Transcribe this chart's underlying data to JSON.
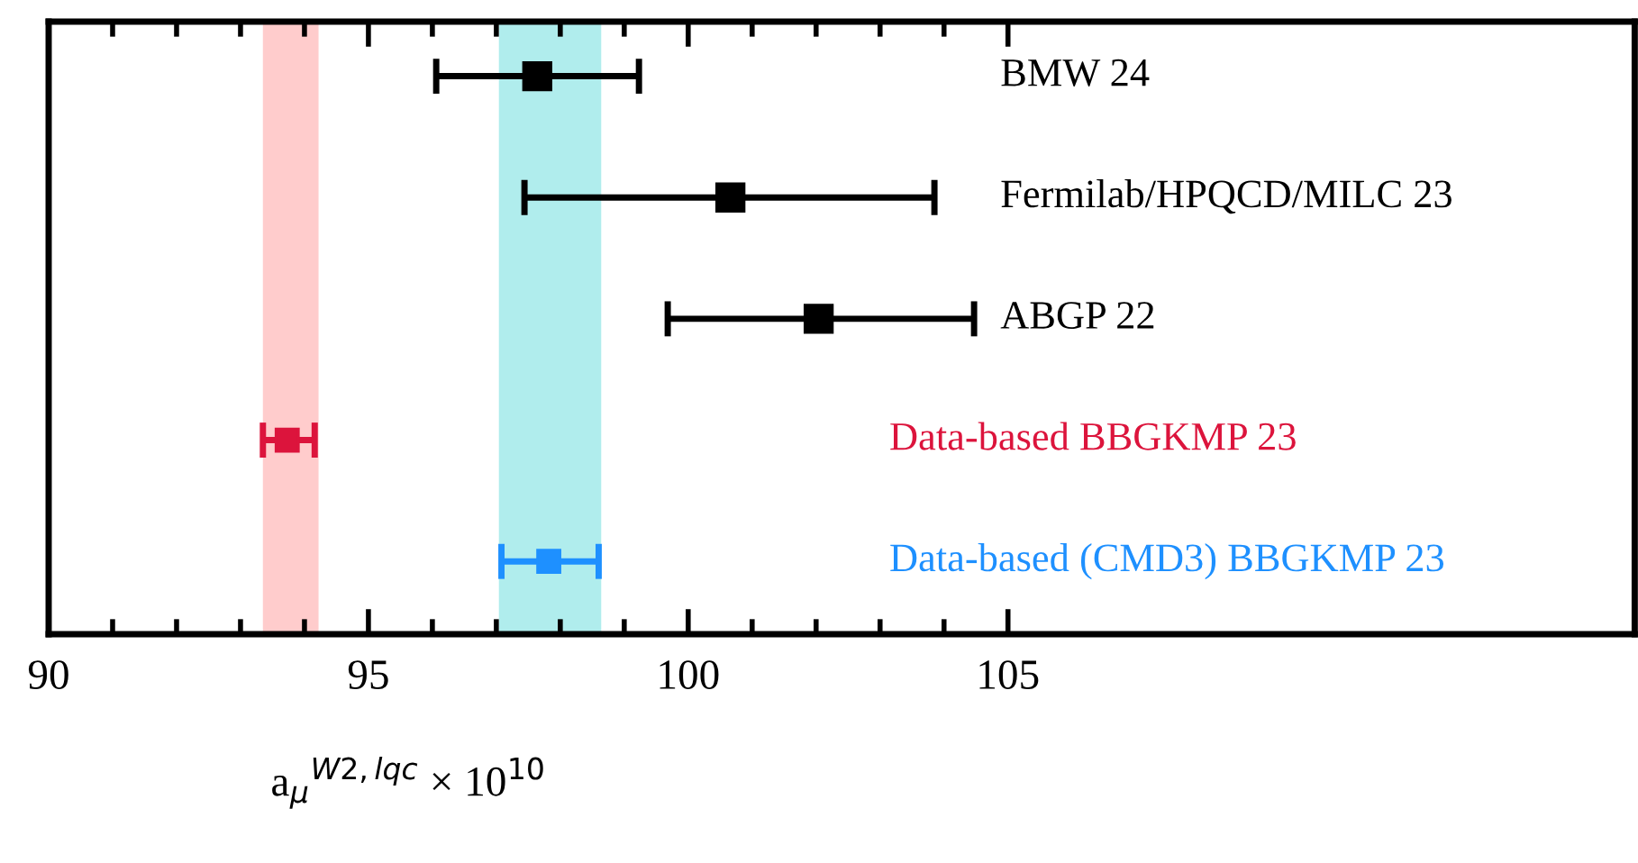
{
  "chart_data": {
    "type": "scatter",
    "orientation": "horizontal",
    "marker": "square",
    "categories": [
      "BMW 24",
      "Fermilab/HPQCD/MILC 23",
      "ABGP 22",
      "Data-based BBGKMP 23",
      "Data-based (CMD3) BBGKMP 23"
    ],
    "values": [
      97.64,
      100.66,
      102.04,
      93.73,
      97.82
    ],
    "errors": [
      [
        96.06,
        99.23
      ],
      [
        97.44,
        103.85
      ],
      [
        99.68,
        104.47
      ],
      [
        93.35,
        94.16
      ],
      [
        97.08,
        98.6
      ]
    ],
    "colors": [
      "#000000",
      "#000000",
      "#000000",
      "#dc143c",
      "#1e90ff"
    ],
    "xlim": [
      90,
      114.8
    ],
    "xticks": [
      90,
      {
        "value": 91,
        "label": null
      },
      {
        "value": 92,
        "label": null
      },
      {
        "value": 93,
        "label": null
      },
      {
        "value": 94,
        "label": null
      },
      95,
      {
        "value": 96,
        "label": null
      },
      {
        "value": 97,
        "label": null
      },
      {
        "value": 98,
        "label": null
      },
      {
        "value": 99,
        "label": null
      },
      100,
      {
        "value": 101,
        "label": null
      },
      {
        "value": 102,
        "label": null
      },
      {
        "value": 103,
        "label": null
      },
      {
        "value": 104,
        "label": null
      },
      105
    ],
    "xlabel": "a$_{μ}$$^{W2,lqc}$ × 10$^{10}$",
    "bands": [
      {
        "axis": "x",
        "from": 93.35,
        "to": 94.22,
        "color": "#ffcccc"
      },
      {
        "axis": "x",
        "from": 97.04,
        "to": 98.64,
        "color": "#b0eded"
      }
    ],
    "tick_labels": "x",
    "grid": false,
    "legend": false
  }
}
